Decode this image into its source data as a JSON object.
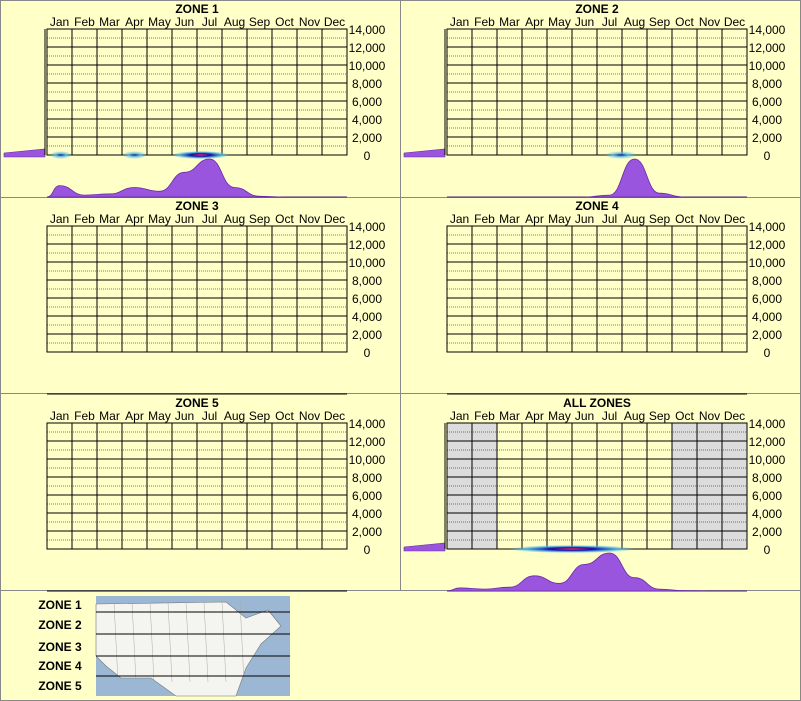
{
  "months": [
    "Jan",
    "Feb",
    "Mar",
    "Apr",
    "May",
    "Jun",
    "Jul",
    "Aug",
    "Sep",
    "Oct",
    "Nov",
    "Dec"
  ],
  "colors": {
    "background": "#ffffc8",
    "grid": "#ffffff",
    "density": "#9955dd",
    "density_stroke": "#6a2aa8",
    "shade": "#dcdcdc",
    "heat_core": "#ff2255",
    "heat_mid": "#1010aa",
    "heat_outer": "#55c0e8"
  },
  "chart_data": [
    {
      "type": "area",
      "title": "ZONE 1",
      "y_ticks": [
        14000,
        12000,
        10000,
        8000,
        6000,
        4000,
        2000,
        0
      ],
      "ylim": [
        0,
        14000
      ],
      "has_data": true,
      "month_density": [
        0.3,
        0.05,
        0.08,
        0.25,
        0.15,
        0.65,
        1.0,
        0.25,
        0.02,
        0,
        0,
        0
      ],
      "elevation_density": [
        0.05,
        0.15
      ],
      "heat_bands": [
        {
          "from": 0.1,
          "to": 1.0,
          "intensity": 0.3
        },
        {
          "from": 3.0,
          "to": 4.0,
          "intensity": 0.25
        },
        {
          "from": 5.0,
          "to": 7.3,
          "intensity": 0.7
        }
      ],
      "shaded_months": []
    },
    {
      "type": "area",
      "title": "ZONE 2",
      "y_ticks": [
        14000,
        12000,
        10000,
        8000,
        6000,
        4000,
        2000,
        0
      ],
      "ylim": [
        0,
        14000
      ],
      "has_data": true,
      "month_density": [
        0,
        0,
        0,
        0,
        0,
        0,
        0.05,
        1.0,
        0.1,
        0,
        0,
        0
      ],
      "elevation_density": [
        0.05,
        0.15
      ],
      "heat_bands": [
        {
          "from": 6.3,
          "to": 7.6,
          "intensity": 0.35
        }
      ],
      "shaded_months": []
    },
    {
      "type": "area",
      "title": "ZONE 3",
      "y_ticks": [
        14000,
        12000,
        10000,
        8000,
        6000,
        4000,
        2000,
        0
      ],
      "ylim": [
        0,
        14000
      ],
      "has_data": false,
      "month_density": [],
      "elevation_density": [],
      "heat_bands": [],
      "shaded_months": []
    },
    {
      "type": "area",
      "title": "ZONE 4",
      "y_ticks": [
        14000,
        12000,
        10000,
        8000,
        6000,
        4000,
        2000,
        0
      ],
      "ylim": [
        0,
        14000
      ],
      "has_data": false,
      "month_density": [],
      "elevation_density": [],
      "heat_bands": [],
      "shaded_months": []
    },
    {
      "type": "area",
      "title": "ZONE 5",
      "y_ticks": [
        14000,
        12000,
        10000,
        8000,
        6000,
        4000,
        2000,
        0
      ],
      "ylim": [
        0,
        14000
      ],
      "has_data": false,
      "month_density": [],
      "elevation_density": [],
      "heat_bands": [],
      "shaded_months": []
    },
    {
      "type": "area",
      "title": "ALL ZONES",
      "y_ticks": [
        14000,
        12000,
        10000,
        8000,
        6000,
        4000,
        2000,
        0
      ],
      "ylim": [
        0,
        14000
      ],
      "has_data": true,
      "month_density": [
        0.08,
        0.05,
        0.1,
        0.4,
        0.2,
        0.7,
        1.0,
        0.35,
        0.05,
        0.01,
        0,
        0
      ],
      "elevation_density": [
        0.05,
        0.15
      ],
      "heat_bands": [
        {
          "from": 2.5,
          "to": 7.5,
          "intensity": 0.85
        }
      ],
      "shaded_months": [
        0,
        1,
        9,
        10,
        11
      ]
    }
  ],
  "legend": {
    "zones": [
      "ZONE 1",
      "ZONE 2",
      "ZONE 3",
      "ZONE 4",
      "ZONE 5"
    ]
  }
}
